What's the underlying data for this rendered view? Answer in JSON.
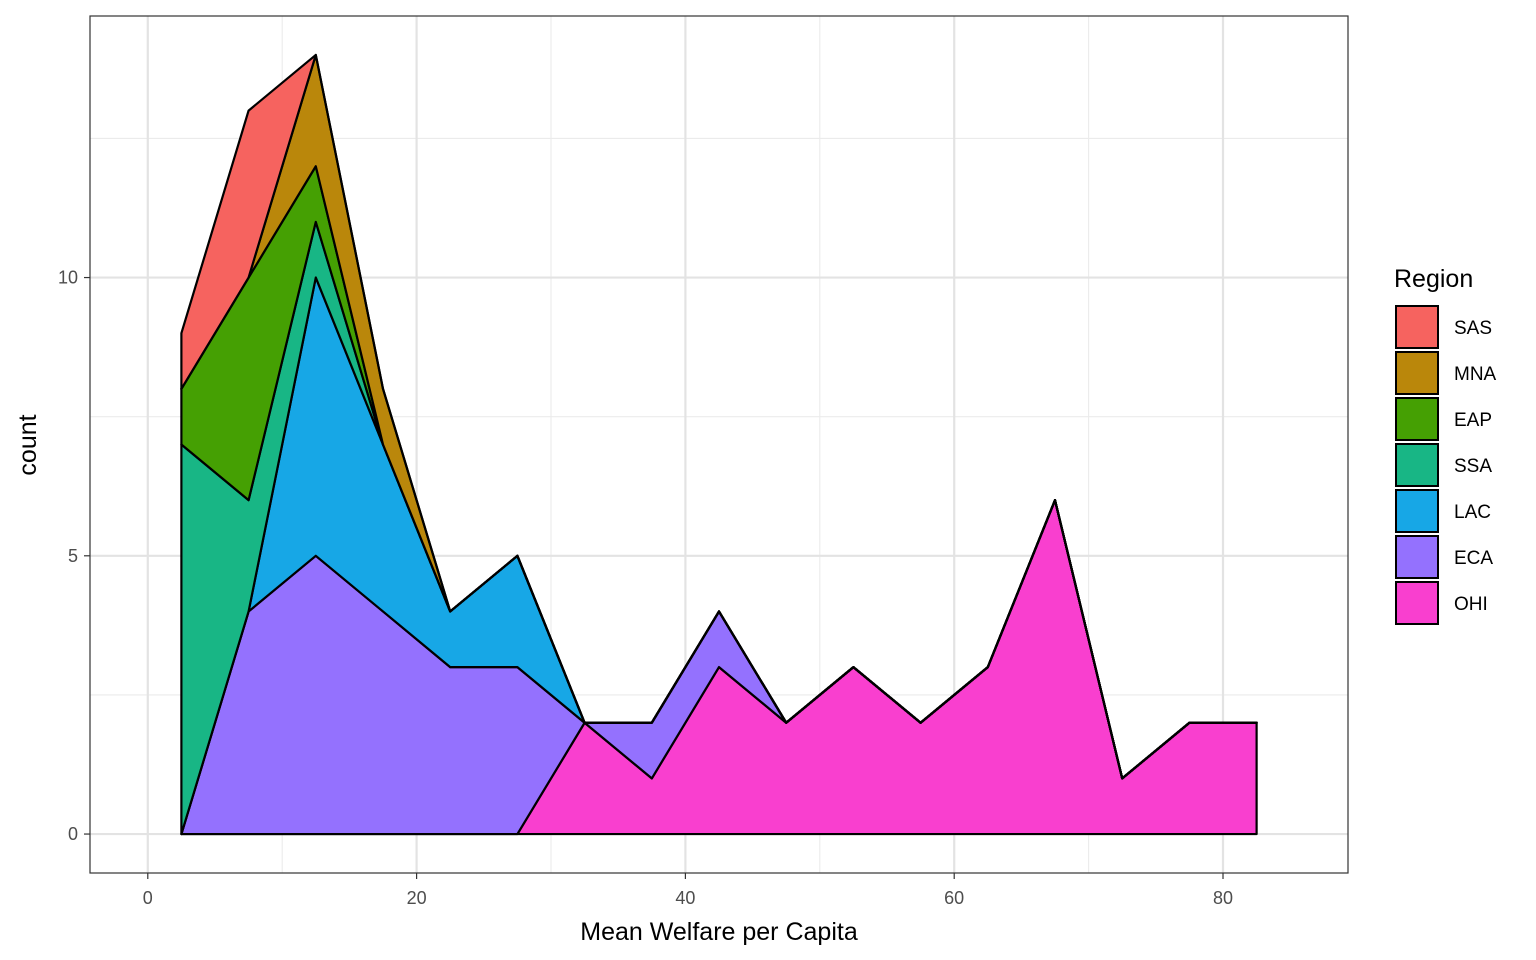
{
  "chart_data": {
    "type": "area",
    "stacked": true,
    "xlabel": "Mean Welfare per Capita",
    "ylabel": "count",
    "xlim": [
      -4.3,
      89.3
    ],
    "ylim": [
      -0.7,
      14.7
    ],
    "x_ticks": [
      0,
      20,
      40,
      60,
      80
    ],
    "y_ticks": [
      0,
      5,
      10
    ],
    "x_tick_labels": [
      "0",
      "20",
      "40",
      "60",
      "80"
    ],
    "y_tick_labels": [
      "0",
      "5",
      "10"
    ],
    "x_minor_ticks": [
      10,
      30,
      50,
      70
    ],
    "y_minor_ticks": [
      2.5,
      7.5,
      12.5
    ],
    "grid": true,
    "legend": {
      "title": "Region",
      "position": "right"
    },
    "x": [
      2.5,
      7.5,
      12.5,
      17.5,
      22.5,
      27.5,
      32.5,
      37.5,
      42.5,
      47.5,
      52.5,
      57.5,
      62.5,
      67.5,
      72.5,
      77.5,
      82.5
    ],
    "series": [
      {
        "name": "OHI",
        "color": "#F93FCF",
        "values": [
          0,
          0,
          0,
          0,
          0,
          0,
          2,
          1,
          3,
          2,
          3,
          2,
          3,
          6,
          1,
          2,
          2
        ]
      },
      {
        "name": "ECA",
        "color": "#9471FE",
        "values": [
          0,
          4,
          5,
          4,
          3,
          3,
          0,
          1,
          1,
          0,
          0,
          0,
          0,
          0,
          0,
          0,
          0
        ]
      },
      {
        "name": "LAC",
        "color": "#17A7E6",
        "values": [
          0,
          0,
          5,
          3,
          1,
          2,
          0,
          0,
          0,
          0,
          0,
          0,
          0,
          0,
          0,
          0,
          0
        ]
      },
      {
        "name": "SSA",
        "color": "#18B685",
        "values": [
          7,
          2,
          1,
          0,
          0,
          0,
          0,
          0,
          0,
          0,
          0,
          0,
          0,
          0,
          0,
          0,
          0
        ]
      },
      {
        "name": "EAP",
        "color": "#45A003",
        "values": [
          1,
          4,
          1,
          0,
          0,
          0,
          0,
          0,
          0,
          0,
          0,
          0,
          0,
          0,
          0,
          0,
          0
        ]
      },
      {
        "name": "MNA",
        "color": "#BA870B",
        "values": [
          0,
          0,
          2,
          1,
          0,
          0,
          0,
          0,
          0,
          0,
          0,
          0,
          0,
          0,
          0,
          0,
          0
        ]
      },
      {
        "name": "SAS",
        "color": "#F6635F",
        "values": [
          1,
          3,
          0,
          0,
          0,
          0,
          0,
          0,
          0,
          0,
          0,
          0,
          0,
          0,
          0,
          0,
          0
        ]
      }
    ],
    "legend_order": [
      "SAS",
      "MNA",
      "EAP",
      "SSA",
      "LAC",
      "ECA",
      "OHI"
    ]
  }
}
